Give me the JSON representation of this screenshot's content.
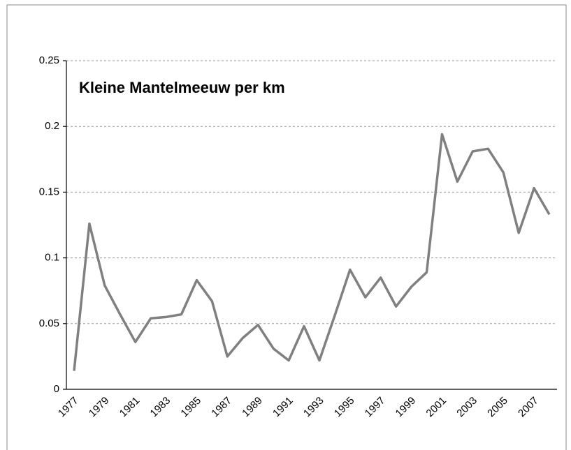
{
  "chart_data": {
    "type": "line",
    "title": "Kleine Mantelmeeuw per km",
    "categories": [
      "1977",
      null,
      "1979",
      null,
      "1981",
      null,
      "1983",
      null,
      "1985",
      null,
      "1987",
      null,
      "1989",
      null,
      "1991",
      null,
      "1993",
      null,
      "1995",
      null,
      "1997",
      null,
      "1999",
      null,
      "2001",
      null,
      "2003",
      null,
      "2005",
      null,
      "2007",
      null
    ],
    "series": [
      {
        "name": "Kleine Mantelmeeuw per km",
        "color": "#808080",
        "values": [
          0.014,
          0.126,
          0.079,
          0.057,
          0.036,
          0.054,
          0.055,
          0.057,
          0.083,
          0.067,
          0.025,
          0.039,
          0.049,
          0.031,
          0.022,
          0.048,
          0.022,
          0.056,
          0.091,
          0.07,
          0.085,
          0.063,
          0.078,
          0.089,
          0.194,
          0.158,
          0.181,
          0.183,
          0.165,
          0.119,
          0.153,
          0.133
        ]
      }
    ],
    "ylim": [
      0,
      0.25
    ],
    "yticks": [
      0,
      0.05,
      0.1,
      0.15,
      0.2,
      0.25
    ],
    "grid": true
  }
}
